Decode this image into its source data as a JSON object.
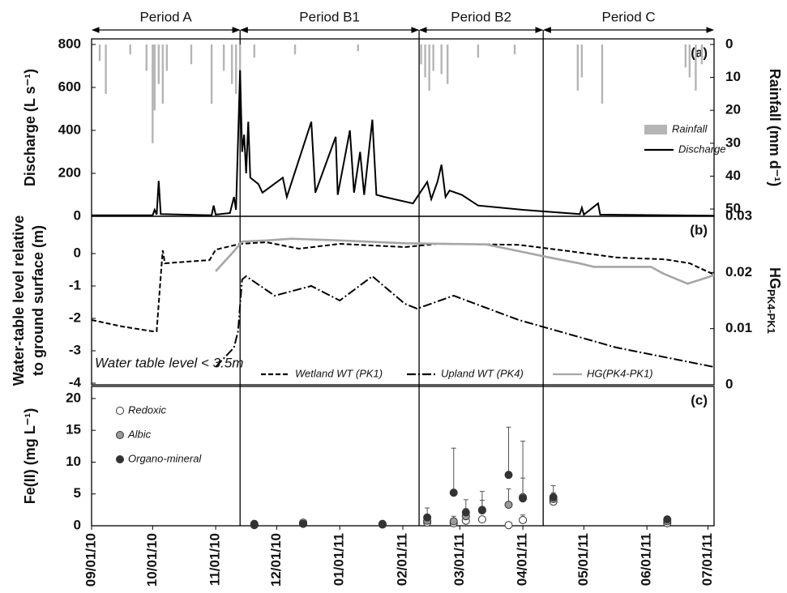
{
  "periods": [
    {
      "label": "Period A",
      "start": "2010-09-01",
      "end": "2010-11-13"
    },
    {
      "label": "Period B1",
      "start": "2010-11-13",
      "end": "2011-02-09"
    },
    {
      "label": "Period B2",
      "start": "2011-02-09",
      "end": "2011-04-11"
    },
    {
      "label": "Period C",
      "start": "2011-04-11",
      "end": "2011-07-04"
    }
  ],
  "chart_data": [
    {
      "type": "bar-line",
      "label": "(a)",
      "ylabel": "Discharge (L s⁻¹)",
      "y2label": "Rainfall (mm d⁻¹)",
      "ylim": [
        0,
        826
      ],
      "yticks": [
        0,
        200,
        400,
        600,
        800
      ],
      "y2lim": [
        52.2,
        -1.7
      ],
      "y2ticks": [
        0,
        10,
        20,
        30,
        40,
        50
      ],
      "legend": "right",
      "series": [
        {
          "name": "Rainfall",
          "type": "bar",
          "axis": "y2",
          "color": "#b5b5b5",
          "x": [
            "2010-09-05",
            "2010-09-08",
            "2010-09-20",
            "2010-09-28",
            "2010-10-01",
            "2010-10-02",
            "2010-10-04",
            "2010-10-06",
            "2010-10-08",
            "2010-10-20",
            "2010-10-30",
            "2010-11-05",
            "2010-11-09",
            "2010-11-11",
            "2010-11-13",
            "2010-11-20",
            "2010-12-10",
            "2011-01-10",
            "2011-02-10",
            "2011-02-12",
            "2011-02-14",
            "2011-02-16",
            "2011-02-20",
            "2011-02-23",
            "2011-03-10",
            "2011-03-28",
            "2011-04-28",
            "2011-04-30",
            "2011-05-10",
            "2011-06-20",
            "2011-06-22",
            "2011-06-25",
            "2011-06-28"
          ],
          "values": [
            5,
            15,
            3,
            8,
            30,
            20,
            12,
            18,
            8,
            6,
            18,
            8,
            12,
            15,
            14,
            4,
            3,
            2,
            6,
            10,
            14,
            8,
            9,
            12,
            4,
            3,
            14,
            10,
            18,
            7,
            10,
            14,
            6
          ]
        },
        {
          "name": "Discharge",
          "type": "line",
          "color": "#000000",
          "dash": "solid",
          "x": [
            "2010-09-01",
            "2010-10-01",
            "2010-10-02",
            "2010-10-03",
            "2010-10-04",
            "2010-10-05",
            "2010-10-30",
            "2010-10-31",
            "2010-11-01",
            "2010-11-08",
            "2010-11-10",
            "2010-11-11",
            "2010-11-13",
            "2010-11-14",
            "2010-11-15",
            "2010-11-16",
            "2010-11-17",
            "2010-11-18",
            "2010-11-22",
            "2010-11-24",
            "2010-12-04",
            "2010-12-06",
            "2010-12-18",
            "2010-12-20",
            "2010-12-30",
            "2010-12-31",
            "2011-01-06",
            "2011-01-08",
            "2011-01-11",
            "2011-01-13",
            "2011-01-17",
            "2011-01-19",
            "2011-01-23",
            "2011-02-06",
            "2011-02-13",
            "2011-02-15",
            "2011-02-18",
            "2011-02-20",
            "2011-02-22",
            "2011-02-24",
            "2011-03-02",
            "2011-03-10",
            "2011-04-01",
            "2011-04-29",
            "2011-04-30",
            "2011-05-01",
            "2011-05-08",
            "2011-05-09",
            "2011-07-04"
          ],
          "values": [
            5,
            5,
            30,
            8,
            165,
            10,
            5,
            50,
            8,
            15,
            90,
            30,
            680,
            300,
            380,
            200,
            440,
            180,
            150,
            110,
            180,
            90,
            440,
            110,
            370,
            100,
            400,
            110,
            300,
            100,
            450,
            100,
            90,
            60,
            160,
            80,
            160,
            240,
            90,
            120,
            100,
            50,
            30,
            10,
            40,
            8,
            60,
            8,
            3
          ]
        }
      ]
    },
    {
      "type": "line",
      "label": "(b)",
      "ylabel": [
        "Water-table level relative",
        "to ground surface (m)"
      ],
      "y2label": "HG",
      "y2label_sub": "PK4-PK1",
      "ylim": [
        -4.05,
        1.15
      ],
      "yticks": [
        -4,
        -3,
        -2,
        -1,
        0
      ],
      "y2lim": [
        0,
        0.03
      ],
      "y2ticks": [
        0,
        0.01,
        0.02,
        0.03
      ],
      "legend": "lower center",
      "annotation": "Water table level < 3.5m",
      "series": [
        {
          "name": "Wetland WT (PK1)",
          "color": "#000000",
          "dash": "dashed",
          "x": [
            "2010-09-01",
            "2010-09-16",
            "2010-10-01",
            "2010-10-03",
            "2010-10-05",
            "2010-10-06",
            "2010-10-07",
            "2010-10-29",
            "2010-11-01",
            "2010-11-13",
            "2010-11-26",
            "2010-12-12",
            "2011-01-01",
            "2011-02-02",
            "2011-02-18",
            "2011-03-30",
            "2011-04-23",
            "2011-05-17",
            "2011-06-10",
            "2011-06-22",
            "2011-07-04"
          ],
          "values": [
            -2.05,
            -2.25,
            -2.4,
            -2.4,
            -0.7,
            0.1,
            -0.3,
            -0.2,
            0.12,
            0.3,
            0.35,
            0.15,
            0.3,
            0.2,
            0.3,
            0.27,
            0.08,
            -0.12,
            -0.18,
            -0.3,
            -0.65
          ]
        },
        {
          "name": "Upland WT (PK4)",
          "color": "#000000",
          "dash": "dashdot",
          "x": [
            "2010-11-01",
            "2010-11-10",
            "2010-11-12",
            "2010-11-14",
            "2010-11-16",
            "2010-11-30",
            "2010-12-18",
            "2011-01-01",
            "2011-01-17",
            "2011-02-02",
            "2011-02-08",
            "2011-02-26",
            "2011-03-30",
            "2011-05-17",
            "2011-07-04"
          ],
          "values": [
            -3.5,
            -2.9,
            -2.4,
            -0.8,
            -0.7,
            -1.3,
            -1.0,
            -1.45,
            -0.7,
            -1.55,
            -1.7,
            -1.3,
            -2.05,
            -2.9,
            -3.5
          ]
        },
        {
          "name": "HG(PK4-PK1)",
          "color": "#a6a6a6",
          "dash": "solid",
          "axis": "y2",
          "x": [
            "2010-11-01",
            "2010-11-10",
            "2010-11-14",
            "2010-11-26",
            "2010-12-08",
            "2011-01-01",
            "2011-02-02",
            "2011-03-14",
            "2011-04-15",
            "2011-04-29",
            "2011-05-06",
            "2011-06-03",
            "2011-06-09",
            "2011-06-21",
            "2011-07-04"
          ],
          "values": [
            0.0202,
            0.0238,
            0.0255,
            0.0257,
            0.026,
            0.0257,
            0.0252,
            0.025,
            0.0226,
            0.0216,
            0.021,
            0.021,
            0.0198,
            0.018,
            0.0195
          ]
        }
      ]
    },
    {
      "type": "scatter",
      "label": "(c)",
      "ylabel": "Fe(II) (mg L⁻¹)",
      "ylim": [
        0,
        21.9
      ],
      "yticks": [
        0,
        5,
        10,
        15,
        20
      ],
      "legend": "upper left",
      "xlim": [
        "2010-09-01",
        "2011-07-04"
      ],
      "xticks": [
        {
          "value": "2010-09-01",
          "label": "09/01/10"
        },
        {
          "value": "2010-10-01",
          "label": "10/01/10"
        },
        {
          "value": "2010-11-01",
          "label": "11/01/10"
        },
        {
          "value": "2010-12-01",
          "label": "12/01/10"
        },
        {
          "value": "2011-01-01",
          "label": "01/01/11"
        },
        {
          "value": "2011-02-01",
          "label": "02/01/11"
        },
        {
          "value": "2011-03-01",
          "label": "03/01/11"
        },
        {
          "value": "2011-04-01",
          "label": "04/01/11"
        },
        {
          "value": "2011-05-01",
          "label": "05/01/11"
        },
        {
          "value": "2011-06-01",
          "label": "06/01/11"
        },
        {
          "value": "2011-07-01",
          "label": "07/01/11"
        }
      ],
      "x": [
        "2010-11-20",
        "2010-12-14",
        "2011-01-22",
        "2011-02-13",
        "2011-02-26",
        "2011-03-04",
        "2011-03-12",
        "2011-03-25",
        "2011-04-01",
        "2011-04-16",
        "2011-06-11"
      ],
      "series": [
        {
          "name": "Redoxic",
          "color": "#ffffff",
          "values": [
            0.1,
            0.5,
            0.3,
            0.5,
            0.4,
            0.8,
            1.0,
            0.1,
            0.9,
            3.8,
            0.4
          ],
          "errors": [
            null,
            null,
            null,
            0.5,
            0.6,
            null,
            null,
            null,
            0.8,
            null,
            null
          ]
        },
        {
          "name": "Albic",
          "color": "#9a9a9a",
          "values": [
            0.2,
            0.3,
            0.2,
            0.8,
            0.7,
            1.5,
            2.5,
            3.3,
            4.5,
            4.2,
            0.7
          ],
          "errors": [
            null,
            null,
            null,
            0.8,
            0.8,
            1.2,
            1.5,
            2.5,
            3.0,
            1.0,
            null
          ]
        },
        {
          "name": "Organo-mineral",
          "color": "#333333",
          "values": [
            0.3,
            0.3,
            0.2,
            1.3,
            5.2,
            2.1,
            2.4,
            8.0,
            4.3,
            4.5,
            1.0
          ],
          "errors": [
            null,
            null,
            null,
            1.5,
            7.0,
            2.0,
            3.0,
            7.5,
            9.0,
            1.8,
            null
          ]
        }
      ]
    }
  ]
}
